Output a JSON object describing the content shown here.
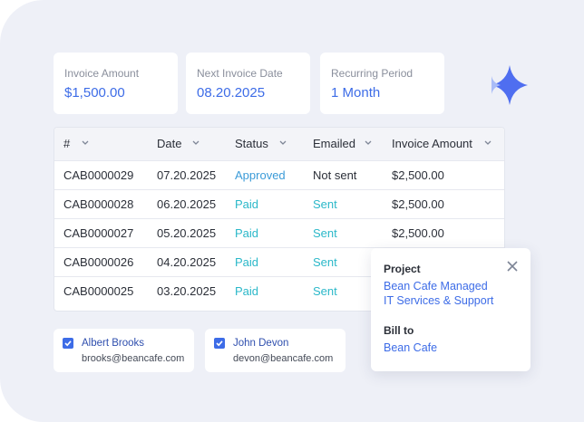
{
  "summary_cards": [
    {
      "label": "Invoice Amount",
      "value": "$1,500.00"
    },
    {
      "label": "Next Invoice Date",
      "value": "08.20.2025"
    },
    {
      "label": "Recurring Period",
      "value": "1 Month"
    }
  ],
  "table": {
    "columns": [
      "#",
      "Date",
      "Status",
      "Emailed",
      "Invoice Amount"
    ],
    "rows": [
      [
        "CAB0000029",
        "07.20.2025",
        "Approved",
        "Not sent",
        "$2,500.00"
      ],
      [
        "CAB0000028",
        "06.20.2025",
        "Paid",
        "Sent",
        "$2,500.00"
      ],
      [
        "CAB0000027",
        "05.20.2025",
        "Paid",
        "Sent",
        "$2,500.00"
      ],
      [
        "CAB0000026",
        "04.20.2025",
        "Paid",
        "Sent",
        ""
      ],
      [
        "CAB0000025",
        "03.20.2025",
        "Paid",
        "Sent",
        ""
      ]
    ]
  },
  "popup": {
    "project_label": "Project",
    "project_lines": [
      "Bean Cafe Managed",
      "IT Services & Support"
    ],
    "bill_label": "Bill to",
    "bill_value": "Bean Cafe"
  },
  "contacts": [
    {
      "name": "Albert Brooks",
      "email": "brooks@beancafe.com"
    },
    {
      "name": "John Devon",
      "email": "devon@beancafe.com"
    }
  ]
}
